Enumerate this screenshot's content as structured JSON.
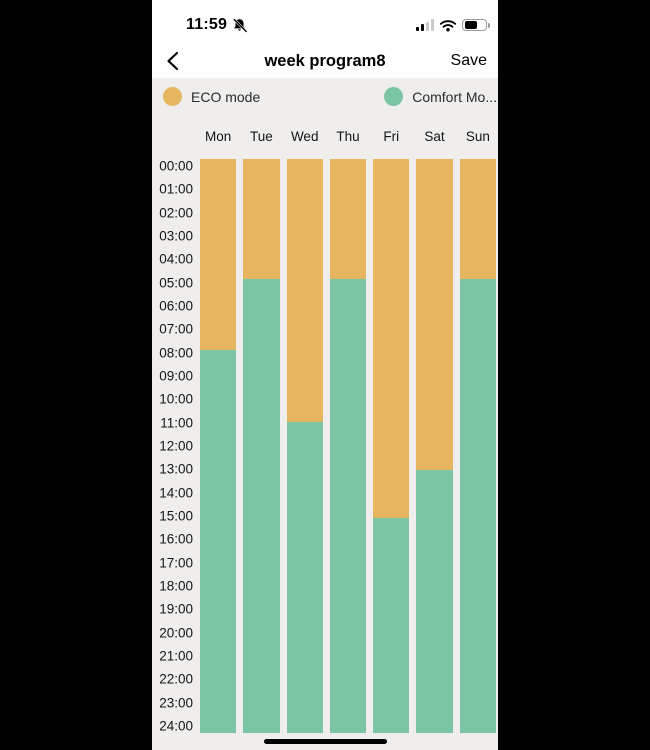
{
  "status_bar": {
    "time": "11:59",
    "notifications_muted": true,
    "cellular_bars_filled": 2,
    "cellular_bars_total": 4,
    "wifi": true,
    "battery_fill_ratio": 0.6
  },
  "nav": {
    "title": "week program8",
    "save_label": "Save"
  },
  "legend": {
    "items": [
      {
        "label": "ECO mode",
        "color": "#E5B55F"
      },
      {
        "label": "Comfort Mo...",
        "color": "#7BC5A4"
      }
    ]
  },
  "chart_data": {
    "type": "bar",
    "stacked": true,
    "orientation": "vertical-time-columns",
    "categories": [
      "Mon",
      "Tue",
      "Wed",
      "Thu",
      "Fri",
      "Sat",
      "Sun"
    ],
    "time_ticks": [
      "00:00",
      "01:00",
      "02:00",
      "03:00",
      "04:00",
      "05:00",
      "06:00",
      "07:00",
      "08:00",
      "09:00",
      "10:00",
      "11:00",
      "12:00",
      "13:00",
      "14:00",
      "15:00",
      "16:00",
      "17:00",
      "18:00",
      "19:00",
      "20:00",
      "21:00",
      "22:00",
      "23:00",
      "24:00"
    ],
    "time_range_hours": [
      0,
      24
    ],
    "series": [
      {
        "name": "ECO mode",
        "color": "#E5B55F",
        "position": "top",
        "values_hours": [
          8,
          5,
          11,
          5,
          15,
          13,
          5
        ]
      },
      {
        "name": "Comfort Mo...",
        "color": "#7BC5A4",
        "position": "bottom",
        "values_hours": [
          16,
          19,
          13,
          19,
          9,
          11,
          19
        ]
      }
    ],
    "switch_times": {
      "Mon": "08:00",
      "Tue": "05:00",
      "Wed": "11:00",
      "Thu": "05:00",
      "Fri": "15:00",
      "Sat": "13:00",
      "Sun": "05:00"
    },
    "grid": false,
    "legend_position": "top"
  }
}
